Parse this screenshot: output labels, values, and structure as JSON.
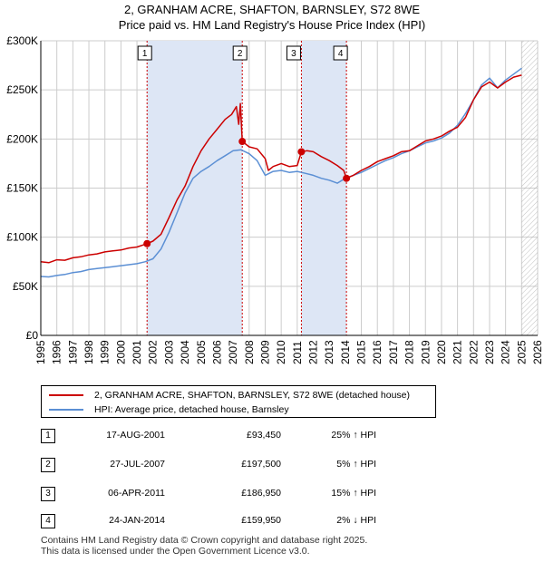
{
  "chart_data": {
    "type": "line",
    "title": "2, GRANHAM ACRE, SHAFTON, BARNSLEY, S72 8WE",
    "subtitle": "Price paid vs. HM Land Registry's House Price Index (HPI)",
    "xlim": [
      1995,
      2026
    ],
    "ylim": [
      0,
      300000
    ],
    "x_ticks": [
      "1995",
      "1996",
      "1997",
      "1998",
      "1999",
      "2000",
      "2001",
      "2002",
      "2003",
      "2004",
      "2005",
      "2006",
      "2007",
      "2008",
      "2009",
      "2010",
      "2011",
      "2012",
      "2013",
      "2014",
      "2015",
      "2016",
      "2017",
      "2018",
      "2019",
      "2020",
      "2021",
      "2022",
      "2023",
      "2024",
      "2025",
      "2026"
    ],
    "y_ticks": [
      {
        "value": 0,
        "label": "£0"
      },
      {
        "value": 50000,
        "label": "£50K"
      },
      {
        "value": 100000,
        "label": "£100K"
      },
      {
        "value": 150000,
        "label": "£150K"
      },
      {
        "value": 200000,
        "label": "£200K"
      },
      {
        "value": 250000,
        "label": "£250K"
      },
      {
        "value": 300000,
        "label": "£300K"
      }
    ],
    "grid": true,
    "shaded_ranges": [
      [
        2001.63,
        2007.57
      ],
      [
        2011.26,
        2014.07
      ]
    ],
    "future_hatch_start": 2025.0,
    "series": [
      {
        "name": "2, GRANHAM ACRE, SHAFTON, BARNSLEY, S72 8WE (detached house)",
        "color": "#cc0000",
        "x": [
          1995.0,
          1995.5,
          1996.0,
          1996.5,
          1997.0,
          1997.5,
          1998.0,
          1998.5,
          1999.0,
          1999.5,
          2000.0,
          2000.5,
          2001.0,
          2001.63,
          2002.0,
          2002.5,
          2003.0,
          2003.5,
          2004.0,
          2004.5,
          2005.0,
          2005.5,
          2006.0,
          2006.5,
          2006.9,
          2007.2,
          2007.35,
          2007.45,
          2007.57,
          2008.0,
          2008.5,
          2009.0,
          2009.2,
          2009.5,
          2010.0,
          2010.5,
          2011.0,
          2011.26,
          2011.6,
          2012.0,
          2012.5,
          2013.0,
          2013.5,
          2013.9,
          2014.07,
          2014.5,
          2015.0,
          2015.5,
          2016.0,
          2016.5,
          2017.0,
          2017.5,
          2018.0,
          2018.5,
          2019.0,
          2019.5,
          2020.0,
          2020.5,
          2021.0,
          2021.5,
          2022.0,
          2022.5,
          2023.0,
          2023.5,
          2024.0,
          2024.5,
          2025.0
        ],
        "y": [
          75000,
          74000,
          77000,
          76500,
          79000,
          80000,
          82000,
          83000,
          85000,
          86000,
          87000,
          89000,
          90000,
          93450,
          96000,
          103000,
          120000,
          138000,
          152000,
          172000,
          188000,
          200000,
          210000,
          220000,
          225000,
          233000,
          215000,
          236000,
          197500,
          192000,
          190000,
          180000,
          168000,
          172000,
          175000,
          172000,
          173000,
          186950,
          188000,
          187000,
          182000,
          178000,
          173000,
          168000,
          159950,
          163000,
          168000,
          172000,
          177000,
          180000,
          183000,
          187000,
          188000,
          193000,
          198000,
          200000,
          203000,
          208000,
          212000,
          222000,
          240000,
          253000,
          258000,
          252000,
          258000,
          263000,
          265000
        ]
      },
      {
        "name": "HPI: Average price, detached house, Barnsley",
        "color": "#5b8fd4",
        "x": [
          1995.0,
          1995.5,
          1996.0,
          1996.5,
          1997.0,
          1997.5,
          1998.0,
          1998.5,
          1999.0,
          1999.5,
          2000.0,
          2000.5,
          2001.0,
          2001.5,
          2002.0,
          2002.5,
          2003.0,
          2003.5,
          2004.0,
          2004.5,
          2005.0,
          2005.5,
          2006.0,
          2006.5,
          2007.0,
          2007.5,
          2008.0,
          2008.5,
          2009.0,
          2009.5,
          2010.0,
          2010.5,
          2011.0,
          2011.5,
          2012.0,
          2012.5,
          2013.0,
          2013.5,
          2014.0,
          2014.5,
          2015.0,
          2015.5,
          2016.0,
          2016.5,
          2017.0,
          2017.5,
          2018.0,
          2018.5,
          2019.0,
          2019.5,
          2020.0,
          2020.5,
          2021.0,
          2021.5,
          2022.0,
          2022.5,
          2023.0,
          2023.5,
          2024.0,
          2024.5,
          2025.0
        ],
        "y": [
          60000,
          59500,
          61000,
          62000,
          64000,
          65000,
          67000,
          68000,
          69000,
          70000,
          71000,
          72000,
          73000,
          75000,
          78000,
          88000,
          105000,
          125000,
          145000,
          160000,
          167000,
          172000,
          178000,
          183000,
          188000,
          189000,
          185000,
          178000,
          163000,
          167000,
          168000,
          166000,
          167000,
          165000,
          163000,
          160000,
          158000,
          155000,
          160000,
          163000,
          166000,
          170000,
          174000,
          178000,
          181000,
          185000,
          188000,
          192000,
          196000,
          198000,
          201000,
          206000,
          214000,
          226000,
          240000,
          255000,
          262000,
          252000,
          260000,
          266000,
          272000
        ]
      }
    ],
    "sales": [
      {
        "id": "1",
        "x": 2001.63,
        "price": 93450
      },
      {
        "id": "2",
        "x": 2007.57,
        "price": 197500
      },
      {
        "id": "3",
        "x": 2011.26,
        "price": 186950
      },
      {
        "id": "4",
        "x": 2014.07,
        "price": 159950
      }
    ]
  },
  "legend": {
    "property_label": "2, GRANHAM ACRE, SHAFTON, BARNSLEY, S72 8WE (detached house)",
    "hpi_label": "HPI: Average price, detached house, Barnsley"
  },
  "transactions": [
    {
      "num": "1",
      "date": "17-AUG-2001",
      "price": "£93,450",
      "hpi": "25% ↑ HPI"
    },
    {
      "num": "2",
      "date": "27-JUL-2007",
      "price": "£197,500",
      "hpi": "5% ↑ HPI"
    },
    {
      "num": "3",
      "date": "06-APR-2011",
      "price": "£186,950",
      "hpi": "15% ↑ HPI"
    },
    {
      "num": "4",
      "date": "24-JAN-2014",
      "price": "£159,950",
      "hpi": "2% ↓ HPI"
    }
  ],
  "footer": {
    "line1": "Contains HM Land Registry data © Crown copyright and database right 2025.",
    "line2": "This data is licensed under the Open Government Licence v3.0."
  },
  "colors": {
    "property": "#cc0000",
    "hpi": "#5b8fd4",
    "shade": "#dde6f5",
    "grid": "#cccccc"
  }
}
